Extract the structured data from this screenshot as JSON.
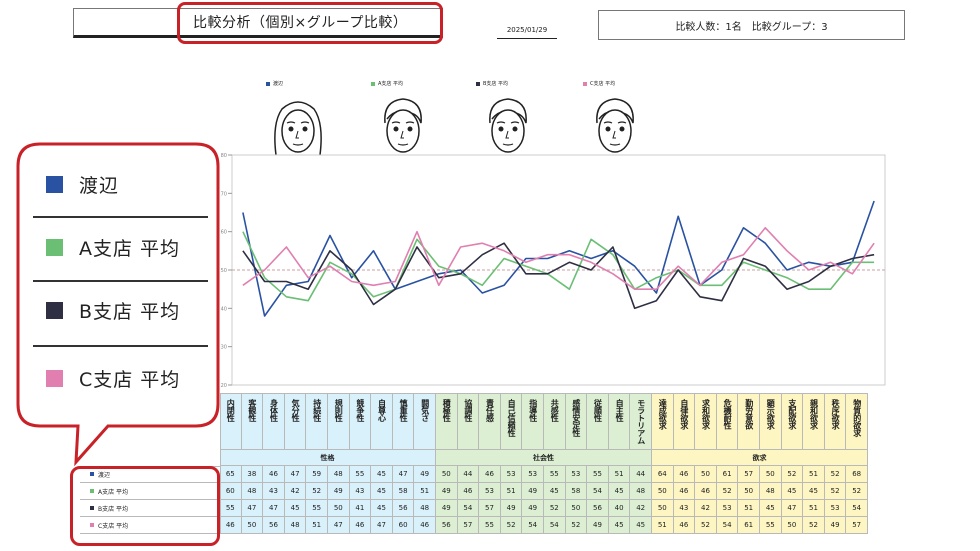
{
  "header": {
    "title": "比較分析（個別×グループ比較）",
    "date": "2025/01/29",
    "stats": "比較人数：1名　比較グループ：3"
  },
  "colors": {
    "watanabe": "#2a52a3",
    "a_avg": "#6bbf74",
    "b_avg": "#2f2f44",
    "c_avg": "#e07fb0",
    "highlight": "#c82127",
    "personality_bg": "#d9f1fb",
    "social_bg": "#dcefd3",
    "desire_bg": "#fdf5c2"
  },
  "legend": [
    {
      "label": "渡辺",
      "color": "#2a52a3"
    },
    {
      "label": "A支店 平均",
      "color": "#6bbf74"
    },
    {
      "label": "B支店 平均",
      "color": "#2f2f44"
    },
    {
      "label": "C支店 平均",
      "color": "#e07fb0"
    }
  ],
  "face_icons": [
    "person-female-icon",
    "person-male-icon",
    "person-male-icon",
    "person-male-icon"
  ],
  "table": {
    "groups": [
      {
        "label": "性格",
        "count": 10,
        "bg": "#d9f1fb"
      },
      {
        "label": "社会性",
        "count": 10,
        "bg": "#dcefd3"
      },
      {
        "label": "欲求",
        "count": 10,
        "bg": "#fdf5c2"
      }
    ],
    "rows": [
      {
        "label": "渡辺",
        "color": "#2a52a3",
        "values": [
          65,
          38,
          46,
          47,
          59,
          48,
          55,
          45,
          47,
          49,
          50,
          44,
          46,
          53,
          53,
          55,
          53,
          55,
          51,
          44,
          64,
          46,
          50,
          61,
          57,
          50,
          52,
          51,
          52,
          68
        ]
      },
      {
        "label": "A支店 平均",
        "color": "#6bbf74",
        "values": [
          60,
          48,
          43,
          42,
          52,
          49,
          43,
          45,
          58,
          51,
          49,
          46,
          53,
          51,
          49,
          45,
          58,
          54,
          45,
          48,
          50,
          46,
          46,
          52,
          50,
          48,
          45,
          45,
          52,
          52
        ]
      },
      {
        "label": "B支店 平均",
        "color": "#2f2f44",
        "values": [
          55,
          47,
          47,
          45,
          55,
          50,
          41,
          45,
          56,
          48,
          49,
          54,
          57,
          49,
          49,
          52,
          50,
          56,
          40,
          42,
          50,
          43,
          42,
          53,
          51,
          45,
          47,
          51,
          53,
          54
        ]
      },
      {
        "label": "C支店 平均",
        "color": "#e07fb0",
        "values": [
          46,
          50,
          56,
          48,
          51,
          47,
          46,
          47,
          60,
          46,
          56,
          57,
          55,
          52,
          54,
          54,
          52,
          49,
          45,
          45,
          51,
          46,
          52,
          54,
          61,
          55,
          50,
          52,
          49,
          57
        ]
      }
    ]
  },
  "chart_data": {
    "type": "line",
    "categories": [
      "内閉性",
      "客観性",
      "身体性",
      "気分性",
      "持続性",
      "規則性",
      "競争性",
      "自尊心",
      "慎重性",
      "闘気さ",
      "積極性",
      "協調性",
      "責任感",
      "自己信頼性",
      "指導性",
      "共感性",
      "感情安定性",
      "従順性",
      "自主性",
      "モラトリアム",
      "達成欲求",
      "自律欲求",
      "求和欲求",
      "危機耐性",
      "勤労意欲",
      "顕示欲求",
      "支配欲求",
      "親和欲求",
      "秩序欲求",
      "物質的欲求"
    ],
    "ylim": [
      20,
      80
    ],
    "yticks": [
      20,
      30,
      40,
      50,
      60,
      70,
      80
    ],
    "reference_line": 50,
    "series": [
      {
        "name": "渡辺",
        "values": [
          65,
          38,
          46,
          47,
          59,
          48,
          55,
          45,
          47,
          49,
          50,
          44,
          46,
          53,
          53,
          55,
          53,
          55,
          51,
          44,
          64,
          46,
          50,
          61,
          57,
          50,
          52,
          51,
          52,
          68
        ]
      },
      {
        "name": "A支店 平均",
        "values": [
          60,
          48,
          43,
          42,
          52,
          49,
          43,
          45,
          58,
          51,
          49,
          46,
          53,
          51,
          49,
          45,
          58,
          54,
          45,
          48,
          50,
          46,
          46,
          52,
          50,
          48,
          45,
          45,
          52,
          52
        ]
      },
      {
        "name": "B支店 平均",
        "values": [
          55,
          47,
          47,
          45,
          55,
          50,
          41,
          45,
          56,
          48,
          49,
          54,
          57,
          49,
          49,
          52,
          50,
          56,
          40,
          42,
          50,
          43,
          42,
          53,
          51,
          45,
          47,
          51,
          53,
          54
        ]
      },
      {
        "name": "C支店 平均",
        "values": [
          46,
          50,
          56,
          48,
          51,
          47,
          46,
          47,
          60,
          46,
          56,
          57,
          55,
          52,
          54,
          54,
          52,
          49,
          45,
          45,
          51,
          46,
          52,
          54,
          61,
          55,
          50,
          52,
          49,
          57
        ]
      }
    ]
  }
}
